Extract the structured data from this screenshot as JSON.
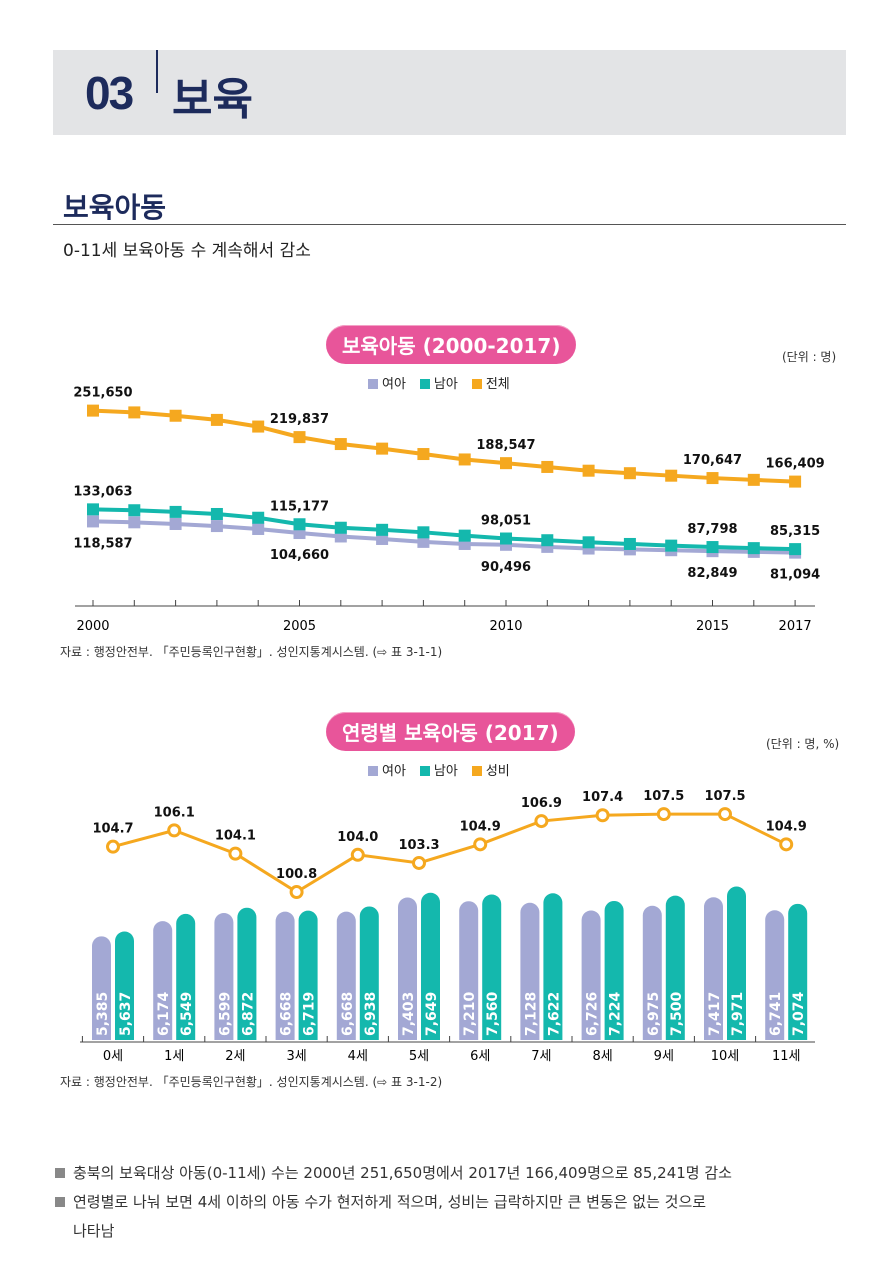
{
  "header": {
    "number": "03",
    "title": "보육"
  },
  "section": {
    "title": "보육아동",
    "subtitle": "0-11세 보육아동 수 계속해서 감소"
  },
  "colors": {
    "girls": "#a3a8d4",
    "boys": "#14b8ad",
    "total": "#f5a81f",
    "pill": "#e8559a",
    "navy": "#1d2b5c"
  },
  "chart_data": [
    {
      "type": "line",
      "title": "보육아동 (2000-2017)",
      "unit": "(단위 : 명)",
      "legend": [
        "여아",
        "남아",
        "전체"
      ],
      "legend_placement": "top",
      "x": [
        2000,
        2001,
        2002,
        2003,
        2004,
        2005,
        2006,
        2007,
        2008,
        2009,
        2010,
        2011,
        2012,
        2013,
        2014,
        2015,
        2016,
        2017
      ],
      "xticks": [
        "2000",
        "2005",
        "2010",
        "2015",
        "2017"
      ],
      "ylim": [
        17000,
        262000
      ],
      "grid": false,
      "series": [
        {
          "name": "여아",
          "values": [
            118587,
            117500,
            115500,
            113000,
            109500,
            104660,
            100500,
            97500,
            94000,
            91500,
            90496,
            88000,
            86000,
            85000,
            84000,
            82849,
            82000,
            81094
          ]
        },
        {
          "name": "남아",
          "values": [
            133063,
            132000,
            130000,
            127500,
            123000,
            115177,
            111000,
            108500,
            105500,
            101500,
            98051,
            96000,
            93500,
            91500,
            89500,
            87798,
            86500,
            85315
          ]
        },
        {
          "name": "전체",
          "values": [
            251650,
            249500,
            245500,
            240500,
            232500,
            219837,
            211500,
            206000,
            199500,
            193000,
            188547,
            184000,
            179500,
            176500,
            173500,
            170647,
            168500,
            166409
          ]
        }
      ],
      "labels": [
        {
          "series": 2,
          "index": 0,
          "text": "251,650"
        },
        {
          "series": 2,
          "index": 5,
          "text": "219,837"
        },
        {
          "series": 2,
          "index": 10,
          "text": "188,547"
        },
        {
          "series": 2,
          "index": 15,
          "text": "170,647"
        },
        {
          "series": 2,
          "index": 17,
          "text": "166,409"
        },
        {
          "series": 1,
          "index": 0,
          "text": "133,063"
        },
        {
          "series": 1,
          "index": 5,
          "text": "115,177"
        },
        {
          "series": 1,
          "index": 10,
          "text": "98,051"
        },
        {
          "series": 1,
          "index": 15,
          "text": "87,798"
        },
        {
          "series": 1,
          "index": 17,
          "text": "85,315"
        },
        {
          "series": 0,
          "index": 0,
          "text": "118,587"
        },
        {
          "series": 0,
          "index": 5,
          "text": "104,660"
        },
        {
          "series": 0,
          "index": 10,
          "text": "90,496"
        },
        {
          "series": 0,
          "index": 15,
          "text": "82,849"
        },
        {
          "series": 0,
          "index": 17,
          "text": "81,094"
        }
      ],
      "source": "자료 : 행정안전부. 「주민등록인구현황」. 성인지통계시스템. (⇨ 표 3-1-1)"
    },
    {
      "type": "bar",
      "title": "연령별 보육아동 (2017)",
      "unit": "(단위 : 명, %)",
      "legend": [
        "여아",
        "남아",
        "성비"
      ],
      "legend_placement": "top",
      "categories": [
        "0세",
        "1세",
        "2세",
        "3세",
        "4세",
        "5세",
        "6세",
        "7세",
        "8세",
        "9세",
        "10세",
        "11세"
      ],
      "ylim": [
        0,
        8000
      ],
      "line_ylim": [
        95,
        110
      ],
      "grid": false,
      "series": [
        {
          "name": "여아",
          "values": [
            5385,
            6174,
            6599,
            6668,
            6668,
            7403,
            7210,
            7128,
            6726,
            6975,
            7417,
            6741
          ],
          "labels": [
            "5,385",
            "6,174",
            "6,599",
            "6,668",
            "6,668",
            "7,403",
            "7,210",
            "7,128",
            "6,726",
            "6,975",
            "7,417",
            "6,741"
          ]
        },
        {
          "name": "남아",
          "values": [
            5637,
            6549,
            6872,
            6719,
            6938,
            7649,
            7560,
            7622,
            7224,
            7500,
            7971,
            7074
          ],
          "labels": [
            "5,637",
            "6,549",
            "6,872",
            "6,719",
            "6,938",
            "7,649",
            "7,560",
            "7,622",
            "7,224",
            "7,500",
            "7,971",
            "7,074"
          ]
        },
        {
          "name": "성비",
          "type": "line",
          "values": [
            104.7,
            106.1,
            104.1,
            100.8,
            104.0,
            103.3,
            104.9,
            106.9,
            107.4,
            107.5,
            107.5,
            104.9
          ],
          "labels": [
            "104.7",
            "106.1",
            "104.1",
            "100.8",
            "104.0",
            "103.3",
            "104.9",
            "106.9",
            "107.4",
            "107.5",
            "107.5",
            "104.9"
          ]
        }
      ],
      "source": "자료 : 행정안전부. 「주민등록인구현황」. 성인지통계시스템. (⇨ 표 3-1-2)"
    }
  ],
  "bullets": [
    "충북의 보육대상 아동(0-11세) 수는 2000년 251,650명에서 2017년 166,409명으로 85,241명 감소",
    "연령별로 나눠 보면 4세 이하의 아동 수가 현저하게 적으며, 성비는 급락하지만 큰 변동은 없는 것으로",
    "나타남"
  ]
}
